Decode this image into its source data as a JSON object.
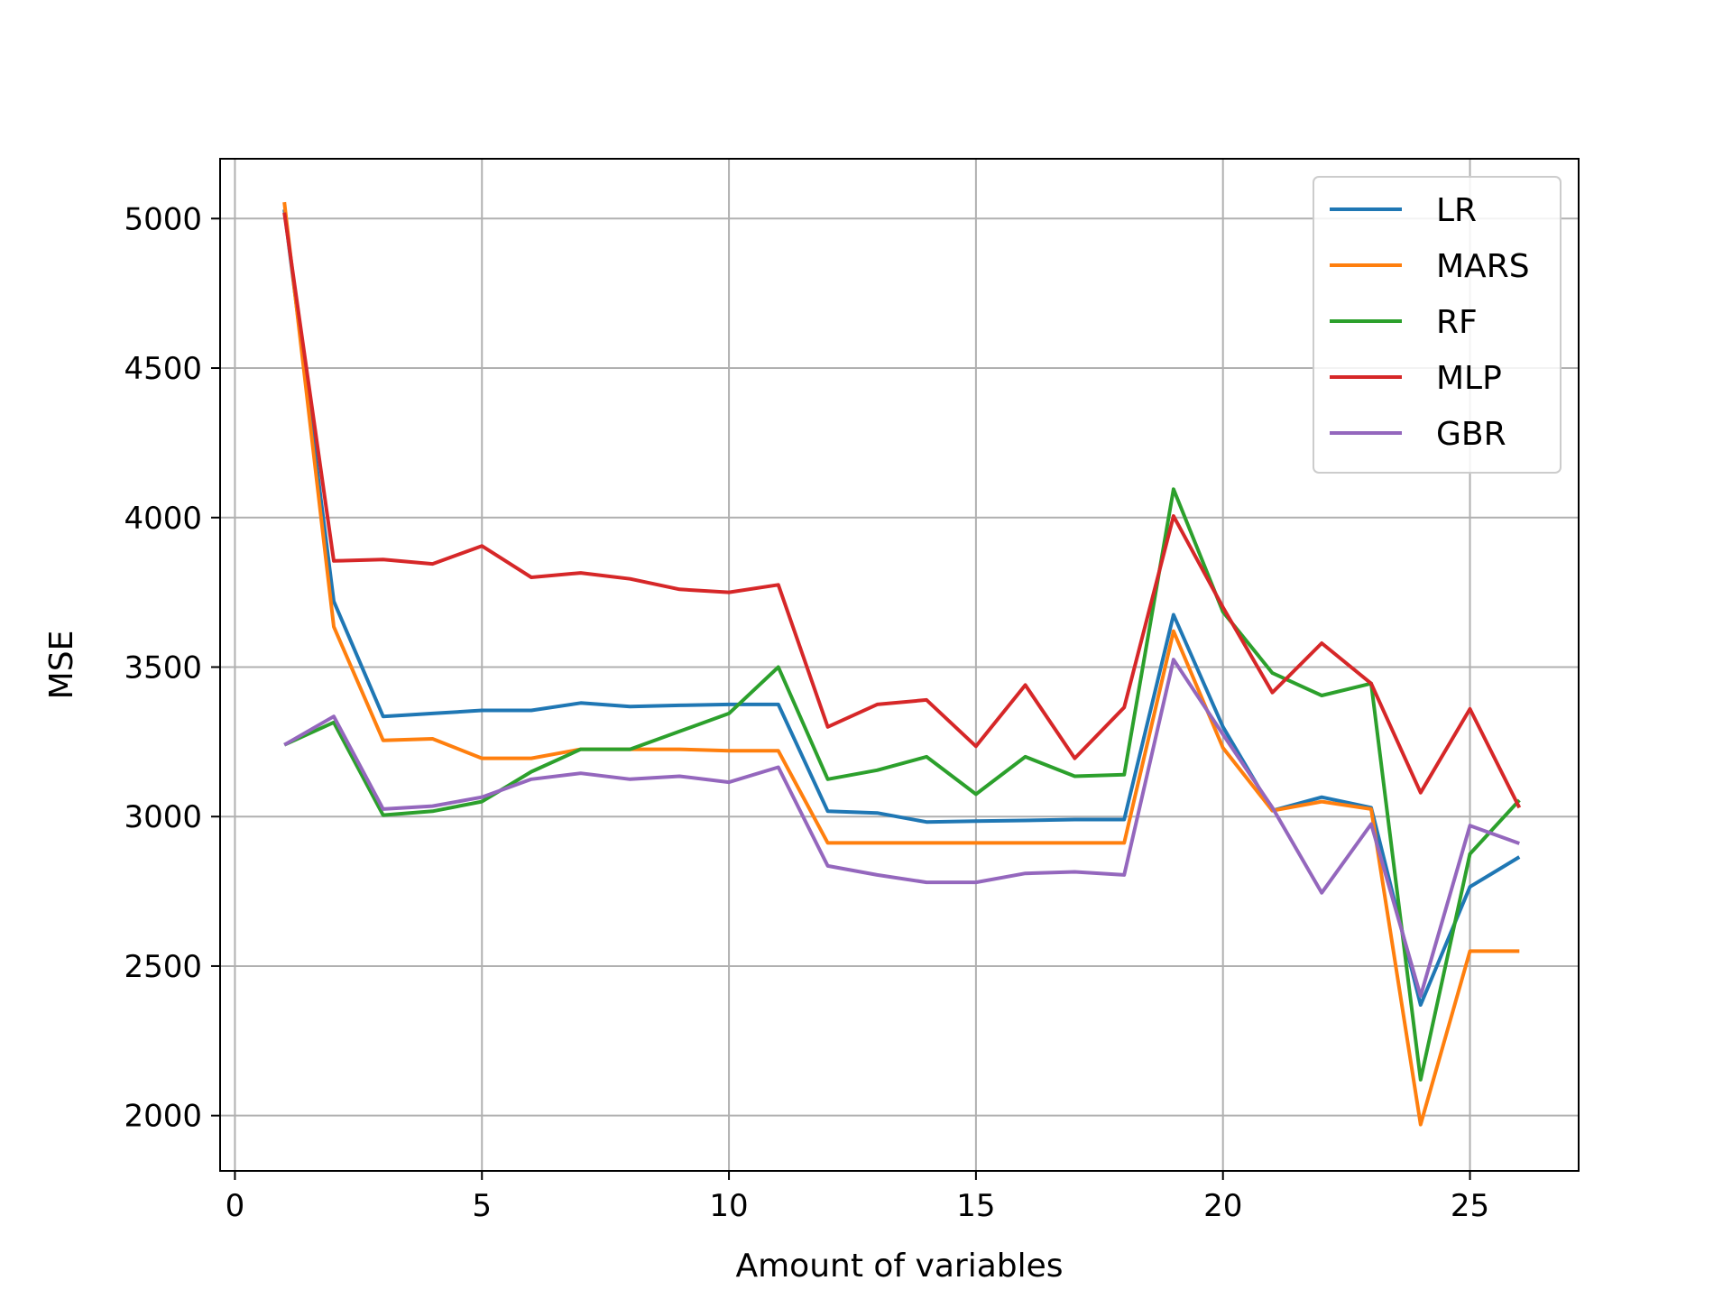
{
  "chart_data": {
    "type": "line",
    "title": "",
    "xlabel": "Amount of variables",
    "ylabel": "MSE",
    "xlim": [
      -0.3,
      27.2
    ],
    "ylim": [
      1815,
      5200
    ],
    "xticks": [
      0,
      5,
      10,
      15,
      20,
      25
    ],
    "yticks": [
      2000,
      2500,
      3000,
      3500,
      4000,
      4500,
      5000
    ],
    "grid": true,
    "legend_position": "top-right",
    "x": [
      1,
      2,
      3,
      4,
      5,
      6,
      7,
      8,
      9,
      10,
      11,
      12,
      13,
      14,
      15,
      16,
      17,
      18,
      19,
      20,
      21,
      22,
      23,
      24,
      25,
      26
    ],
    "series": [
      {
        "name": "LR",
        "color": "#1f77b4",
        "values": [
          5030,
          3720,
          3335,
          3345,
          3355,
          3355,
          3380,
          3368,
          3372,
          3375,
          3375,
          3018,
          3012,
          2982,
          2985,
          2987,
          2990,
          2990,
          3675,
          3300,
          3020,
          3065,
          3030,
          2370,
          2765,
          2865
        ]
      },
      {
        "name": "MARS",
        "color": "#ff7f0e",
        "values": [
          5055,
          3635,
          3255,
          3260,
          3195,
          3195,
          3225,
          3225,
          3225,
          3220,
          3220,
          2912,
          2912,
          2912,
          2912,
          2912,
          2912,
          2912,
          3620,
          3230,
          3020,
          3050,
          3025,
          1970,
          2550,
          2550
        ]
      },
      {
        "name": "RF",
        "color": "#2ca02c",
        "values": [
          3240,
          3315,
          3005,
          3018,
          3050,
          3150,
          3225,
          3225,
          3285,
          3345,
          3500,
          3125,
          3155,
          3200,
          3075,
          3200,
          3135,
          3140,
          4095,
          3685,
          3480,
          3405,
          3445,
          2120,
          2875,
          3055
        ]
      },
      {
        "name": "MLP",
        "color": "#d62728",
        "values": [
          5020,
          3855,
          3860,
          3845,
          3905,
          3800,
          3815,
          3795,
          3760,
          3750,
          3775,
          3300,
          3375,
          3390,
          3235,
          3440,
          3195,
          3365,
          4005,
          3700,
          3415,
          3580,
          3445,
          3080,
          3360,
          3030
        ]
      },
      {
        "name": "GBR",
        "color": "#9467bd",
        "values": [
          3240,
          3335,
          3025,
          3035,
          3065,
          3125,
          3145,
          3125,
          3135,
          3115,
          3165,
          2835,
          2805,
          2780,
          2780,
          2810,
          2815,
          2805,
          3525,
          3275,
          3030,
          2745,
          2975,
          2400,
          2970,
          2910
        ]
      }
    ]
  }
}
